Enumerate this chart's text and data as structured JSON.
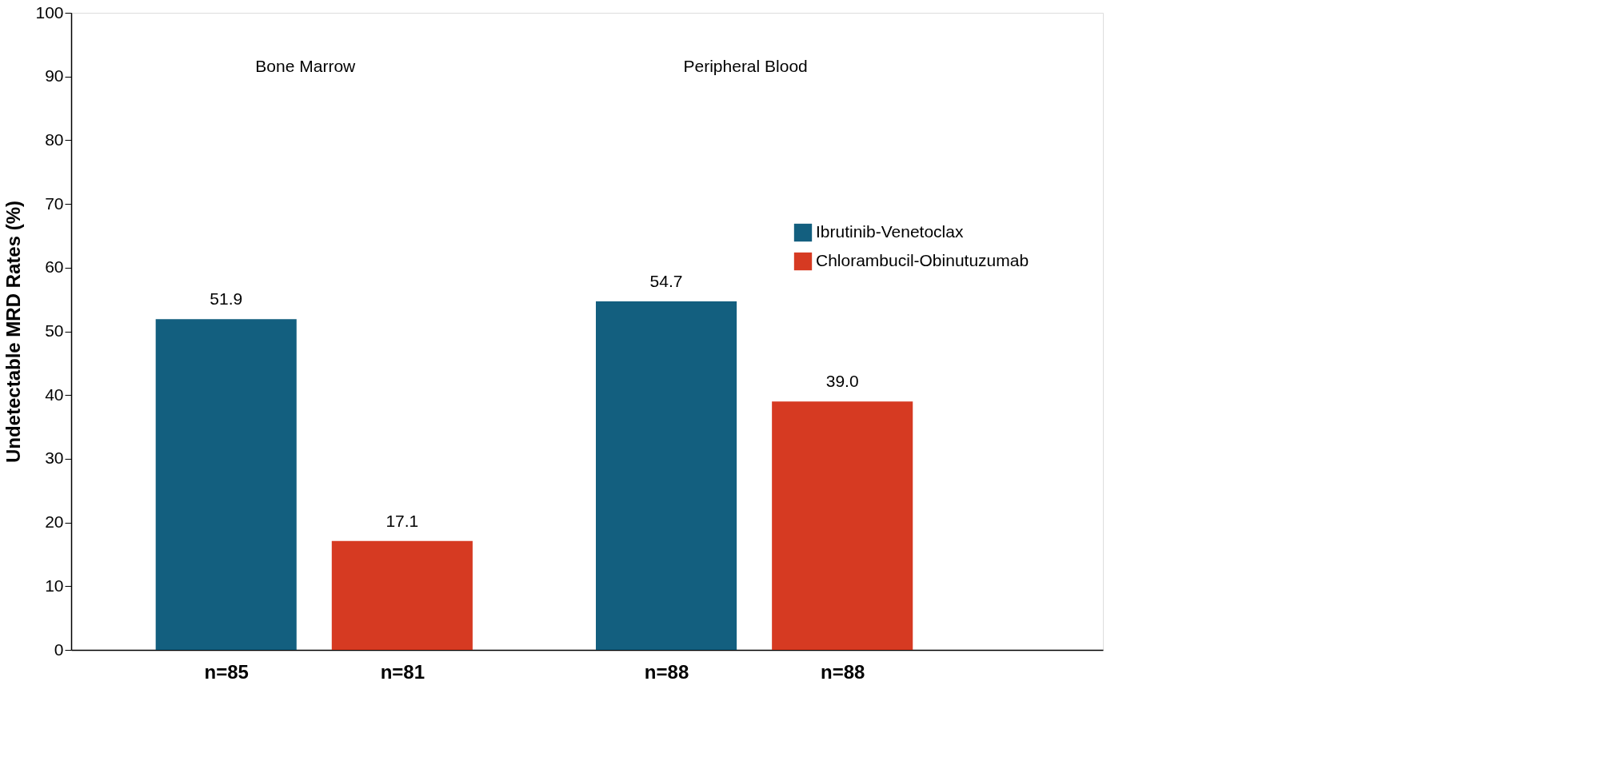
{
  "chart_data": {
    "type": "bar",
    "ylabel": "Undetectable MRD Rates (%)",
    "categories": [
      "n=85",
      "n=81",
      "n=88",
      "n=88"
    ],
    "series": [
      {
        "name": "Ibrutinib-Venetoclax",
        "color": "#135f7f",
        "values": [
          51.9,
          null,
          54.7,
          null
        ],
        "value_labels": [
          "51.9",
          null,
          "54.7",
          null
        ]
      },
      {
        "name": "Chlorambucil-Obinutuzumab",
        "color": "#d63a22",
        "values": [
          null,
          17.1,
          null,
          39.0
        ],
        "value_labels": [
          null,
          "17.1",
          null,
          "39.0"
        ]
      }
    ],
    "annotations": [
      "Bone Marrow",
      "Peripheral Blood"
    ],
    "ylim": [
      0,
      100
    ],
    "yticks": [
      0,
      10,
      20,
      30,
      40,
      50,
      60,
      70,
      80,
      90,
      100
    ],
    "grid": false,
    "legend": "right"
  }
}
